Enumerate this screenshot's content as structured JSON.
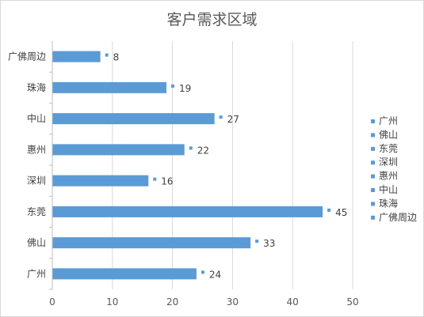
{
  "chart_data": {
    "type": "bar",
    "orientation": "horizontal",
    "title": "客户需求区域",
    "categories": [
      "广州",
      "佛山",
      "东莞",
      "深圳",
      "惠州",
      "中山",
      "珠海",
      "广佛周边"
    ],
    "values": [
      24,
      33,
      45,
      16,
      22,
      27,
      19,
      8
    ],
    "xlim": [
      0,
      50
    ],
    "xticks": [
      0,
      10,
      20,
      30,
      40,
      50
    ],
    "grid": true,
    "data_labels": true,
    "legend": {
      "position": "right",
      "entries": [
        "广州",
        "佛山",
        "东莞",
        "深圳",
        "惠州",
        "中山",
        "珠海",
        "广佛周边"
      ]
    },
    "colors": {
      "bar": "#5b9bd5",
      "grid": "#d9d9d9",
      "axis": "#bfbfbf",
      "text": "#595959"
    }
  }
}
